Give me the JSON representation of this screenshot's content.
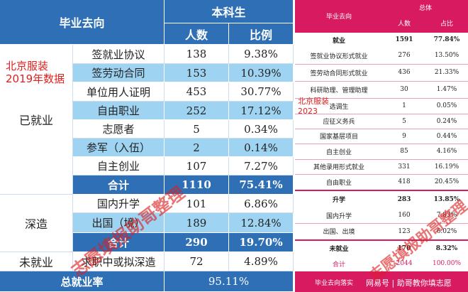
{
  "left_table": {
    "header": {
      "destination": "毕业去向",
      "group": "本科生",
      "count": "人数",
      "ratio": "比例"
    },
    "categories": {
      "employed": "已就业",
      "further_study": "深造",
      "unemployed": "未就业"
    },
    "rows": [
      {
        "label": "签就业协议",
        "count": "138",
        "ratio": "9.38%"
      },
      {
        "label": "签劳动合同",
        "count": "153",
        "ratio": "10.39%"
      },
      {
        "label": "单位用人证明",
        "count": "453",
        "ratio": "30.77%"
      },
      {
        "label": "自由职业",
        "count": "252",
        "ratio": "17.12%"
      },
      {
        "label": "志愿者",
        "count": "5",
        "ratio": "0.34%"
      },
      {
        "label": "参军（入伍）",
        "count": "2",
        "ratio": "0.14%"
      },
      {
        "label": "自主创业",
        "count": "107",
        "ratio": "7.27%"
      },
      {
        "label": "合计",
        "count": "1110",
        "ratio": "75.41%"
      },
      {
        "label": "国内升学",
        "count": "101",
        "ratio": "6.86%"
      },
      {
        "label": "出国（境）",
        "count": "189",
        "ratio": "12.84%"
      },
      {
        "label": "合计",
        "count": "290",
        "ratio": "19.70%"
      },
      {
        "label": "求职中或拟深造",
        "count": "72",
        "ratio": "4.89%"
      }
    ],
    "total": {
      "label": "总就业率",
      "value": "95.11%"
    },
    "note": [
      "北京服装",
      "2019年数据"
    ],
    "watermark": "志愿填报助哥整理"
  },
  "right_table": {
    "header": {
      "destination": "毕业去向",
      "group": "总体",
      "count": "人数",
      "ratio": "占比"
    },
    "rows": [
      {
        "label": "就业",
        "count": "1591",
        "ratio": "77.84%",
        "bold": true
      },
      {
        "label": "签就业协议形式就业",
        "count": "276",
        "ratio": "13.50%"
      },
      {
        "label": "签劳动合同形式就业",
        "count": "436",
        "ratio": "21.33%"
      },
      {
        "label": "科研助理、管理助理",
        "count": "30",
        "ratio": "1.47%"
      },
      {
        "label": "选调生",
        "count": "1",
        "ratio": "0.05%"
      },
      {
        "label": "应征义务兵",
        "count": "5",
        "ratio": "0.24%"
      },
      {
        "label": "国家基层项目",
        "count": "9",
        "ratio": "0.44%"
      },
      {
        "label": "自主创业",
        "count": "85",
        "ratio": "4.16%"
      },
      {
        "label": "其他录用形式就业",
        "count": "331",
        "ratio": "16.19%"
      },
      {
        "label": "自由职业",
        "count": "418",
        "ratio": "20.45%"
      },
      {
        "label": "升学",
        "count": "283",
        "ratio": "13.85%",
        "bold": true
      },
      {
        "label": "国内升学",
        "count": "160",
        "ratio": "7.83%"
      },
      {
        "label": "出国、出境",
        "count": "123",
        "ratio": "6.02%"
      },
      {
        "label": "未就业",
        "count": "170",
        "ratio": "8.32%",
        "bold": true
      },
      {
        "label": "合计",
        "count": "2044",
        "ratio": "100.00%",
        "red": true
      }
    ],
    "note": [
      "北京服装",
      "2023"
    ],
    "watermark": "志愿填报助哥整理",
    "footer": {
      "text": "毕业去向落实",
      "credit": "网易号 | 助哥教你填志愿"
    }
  }
}
